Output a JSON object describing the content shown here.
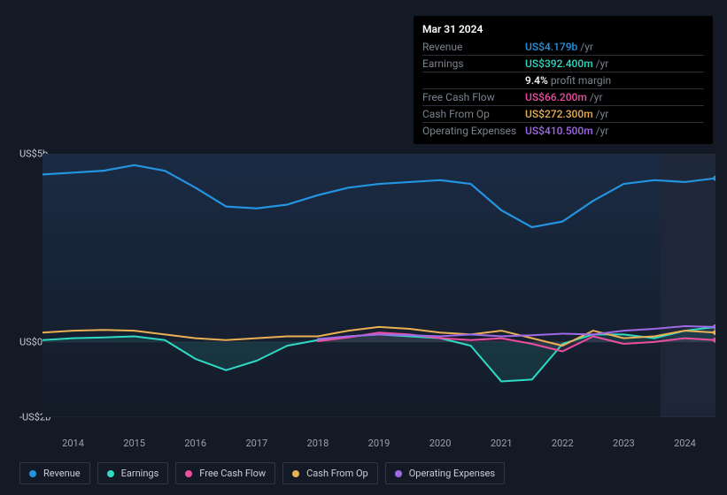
{
  "tooltip": {
    "date": "Mar 31 2024",
    "rows": [
      {
        "label": "Revenue",
        "value": "US$4.179b",
        "unit": "/yr",
        "color": "#2394df"
      },
      {
        "label": "Earnings",
        "value": "US$392.400m",
        "unit": "/yr",
        "color": "#30d9c4"
      },
      {
        "label": "",
        "value": "9.4%",
        "unit": "profit margin",
        "color": "#ffffff"
      },
      {
        "label": "Free Cash Flow",
        "value": "US$66.200m",
        "unit": "/yr",
        "color": "#e94ea0"
      },
      {
        "label": "Cash From Op",
        "value": "US$272.300m",
        "unit": "/yr",
        "color": "#eab054"
      },
      {
        "label": "Operating Expenses",
        "value": "US$410.500m",
        "unit": "/yr",
        "color": "#a06ae6"
      }
    ]
  },
  "chart": {
    "type": "line",
    "background": "#131a26",
    "plot_bg_gradient_from": "#1b2b44",
    "plot_bg_gradient_to": "#131b27",
    "grid_color": "#2a2f38",
    "highlight_band_x": [
      2023.6,
      2024.5
    ],
    "highlight_band_color": "#20283a",
    "y": {
      "range_billion": [
        -2,
        5
      ],
      "ticks": [
        {
          "v": 5,
          "label": "US$5b"
        },
        {
          "v": 0,
          "label": "US$0"
        },
        {
          "v": -2,
          "label": "-US$2b"
        }
      ],
      "label_color": "#c9cdd4",
      "label_fontsize": 11
    },
    "x": {
      "years": [
        2014,
        2015,
        2016,
        2017,
        2018,
        2019,
        2020,
        2021,
        2022,
        2023,
        2024
      ],
      "range": [
        2013.5,
        2024.5
      ],
      "label_color": "#9aa1ab",
      "label_fontsize": 11
    },
    "series": [
      {
        "name": "Revenue",
        "color": "#2394df",
        "stroke_width": 2.2,
        "area_fill": false,
        "points": [
          [
            2013.5,
            4.45
          ],
          [
            2014,
            4.5
          ],
          [
            2014.5,
            4.55
          ],
          [
            2015,
            4.7
          ],
          [
            2015.5,
            4.55
          ],
          [
            2016,
            4.1
          ],
          [
            2016.5,
            3.6
          ],
          [
            2017,
            3.55
          ],
          [
            2017.5,
            3.65
          ],
          [
            2018,
            3.9
          ],
          [
            2018.5,
            4.1
          ],
          [
            2019,
            4.2
          ],
          [
            2019.5,
            4.25
          ],
          [
            2020,
            4.3
          ],
          [
            2020.5,
            4.2
          ],
          [
            2021,
            3.5
          ],
          [
            2021.5,
            3.05
          ],
          [
            2022,
            3.2
          ],
          [
            2022.5,
            3.75
          ],
          [
            2023,
            4.2
          ],
          [
            2023.5,
            4.3
          ],
          [
            2024,
            4.25
          ],
          [
            2024.5,
            4.35
          ]
        ]
      },
      {
        "name": "Earnings",
        "color": "#30d9c4",
        "stroke_width": 2,
        "area_fill": true,
        "area_fill_color": "#30d9c4",
        "area_fill_opacity": 0.12,
        "points": [
          [
            2013.5,
            0.05
          ],
          [
            2014,
            0.1
          ],
          [
            2014.5,
            0.12
          ],
          [
            2015,
            0.15
          ],
          [
            2015.5,
            0.05
          ],
          [
            2016,
            -0.45
          ],
          [
            2016.5,
            -0.75
          ],
          [
            2017,
            -0.5
          ],
          [
            2017.5,
            -0.1
          ],
          [
            2018,
            0.05
          ],
          [
            2018.5,
            0.15
          ],
          [
            2019,
            0.2
          ],
          [
            2019.5,
            0.15
          ],
          [
            2020,
            0.1
          ],
          [
            2020.5,
            -0.1
          ],
          [
            2021,
            -1.05
          ],
          [
            2021.5,
            -1.0
          ],
          [
            2022,
            -0.05
          ],
          [
            2022.5,
            0.2
          ],
          [
            2023,
            0.2
          ],
          [
            2023.5,
            0.1
          ],
          [
            2024,
            0.3
          ],
          [
            2024.5,
            0.4
          ]
        ]
      },
      {
        "name": "Free Cash Flow",
        "color": "#e94ea0",
        "stroke_width": 2,
        "area_fill": true,
        "area_fill_color": "#e94ea0",
        "area_fill_opacity": 0.1,
        "points": [
          [
            2018,
            0.02
          ],
          [
            2018.5,
            0.12
          ],
          [
            2019,
            0.25
          ],
          [
            2019.5,
            0.2
          ],
          [
            2020,
            0.1
          ],
          [
            2020.5,
            0.05
          ],
          [
            2021,
            0.1
          ],
          [
            2021.5,
            -0.05
          ],
          [
            2022,
            -0.25
          ],
          [
            2022.5,
            0.15
          ],
          [
            2023,
            -0.05
          ],
          [
            2023.5,
            0.0
          ],
          [
            2024,
            0.1
          ],
          [
            2024.5,
            0.05
          ]
        ]
      },
      {
        "name": "Cash From Op",
        "color": "#eab054",
        "stroke_width": 2,
        "area_fill": false,
        "points": [
          [
            2013.5,
            0.25
          ],
          [
            2014,
            0.3
          ],
          [
            2014.5,
            0.32
          ],
          [
            2015,
            0.3
          ],
          [
            2015.5,
            0.2
          ],
          [
            2016,
            0.1
          ],
          [
            2016.5,
            0.05
          ],
          [
            2017,
            0.1
          ],
          [
            2017.5,
            0.15
          ],
          [
            2018,
            0.15
          ],
          [
            2018.5,
            0.3
          ],
          [
            2019,
            0.4
          ],
          [
            2019.5,
            0.35
          ],
          [
            2020,
            0.25
          ],
          [
            2020.5,
            0.2
          ],
          [
            2021,
            0.3
          ],
          [
            2021.5,
            0.1
          ],
          [
            2022,
            -0.1
          ],
          [
            2022.5,
            0.3
          ],
          [
            2023,
            0.1
          ],
          [
            2023.5,
            0.15
          ],
          [
            2024,
            0.3
          ],
          [
            2024.5,
            0.25
          ]
        ]
      },
      {
        "name": "Operating Expenses",
        "color": "#a06ae6",
        "stroke_width": 2,
        "area_fill": false,
        "points": [
          [
            2018,
            0.08
          ],
          [
            2018.5,
            0.15
          ],
          [
            2019,
            0.2
          ],
          [
            2019.5,
            0.18
          ],
          [
            2020,
            0.15
          ],
          [
            2020.5,
            0.2
          ],
          [
            2021,
            0.15
          ],
          [
            2021.5,
            0.18
          ],
          [
            2022,
            0.22
          ],
          [
            2022.5,
            0.2
          ],
          [
            2023,
            0.3
          ],
          [
            2023.5,
            0.35
          ],
          [
            2024,
            0.42
          ],
          [
            2024.5,
            0.4
          ]
        ]
      }
    ],
    "legend": [
      {
        "name": "Revenue",
        "color": "#2394df"
      },
      {
        "name": "Earnings",
        "color": "#30d9c4"
      },
      {
        "name": "Free Cash Flow",
        "color": "#e94ea0"
      },
      {
        "name": "Cash From Op",
        "color": "#eab054"
      },
      {
        "name": "Operating Expenses",
        "color": "#a06ae6"
      }
    ]
  }
}
